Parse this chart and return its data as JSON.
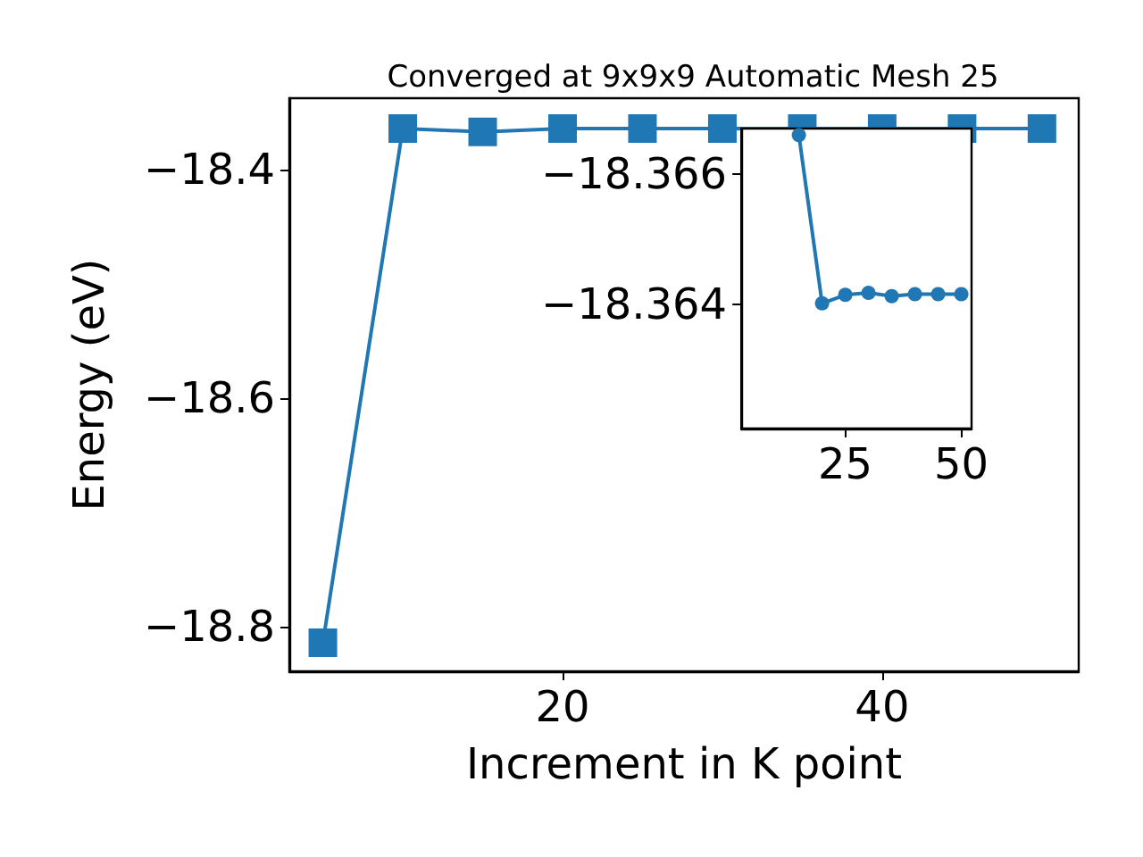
{
  "chart_data": [
    {
      "type": "line",
      "title": "Converged at 9x9x9 Automatic Mesh 25",
      "xlabel": "Increment in K point",
      "ylabel": "Energy (eV)",
      "marker": "square",
      "line_style": "solid",
      "grid": false,
      "series": [
        {
          "color": "#1f77b4",
          "x": [
            5,
            10,
            15,
            20,
            25,
            30,
            35,
            40,
            45,
            50
          ],
          "values": [
            -18.814,
            -18.364,
            -18.367,
            -18.364,
            -18.364,
            -18.364,
            -18.364,
            -18.364,
            -18.364,
            -18.364
          ]
        }
      ],
      "xlim": [
        2.9,
        52.3
      ],
      "xticks": [
        20,
        40
      ],
      "ylim": [
        -18.839,
        -18.3375
      ],
      "yticks": [
        -18.4,
        -18.6,
        -18.8
      ]
    },
    {
      "type": "line",
      "marker": "circle",
      "line_style": "solid",
      "grid": false,
      "series": [
        {
          "color": "#1f77b4",
          "x": [
            15,
            20,
            25,
            30,
            35,
            40,
            45,
            50
          ],
          "values": [
            -18.3666,
            -18.36402,
            -18.36415,
            -18.36418,
            -18.36413,
            -18.36416,
            -18.36416,
            -18.36416
          ]
        }
      ],
      "xlim": [
        2.6,
        52.2
      ],
      "xticks": [
        25,
        50
      ],
      "ylim": [
        -18.3621,
        -18.3667
      ],
      "yticks": [
        -18.366,
        -18.364
      ]
    }
  ]
}
